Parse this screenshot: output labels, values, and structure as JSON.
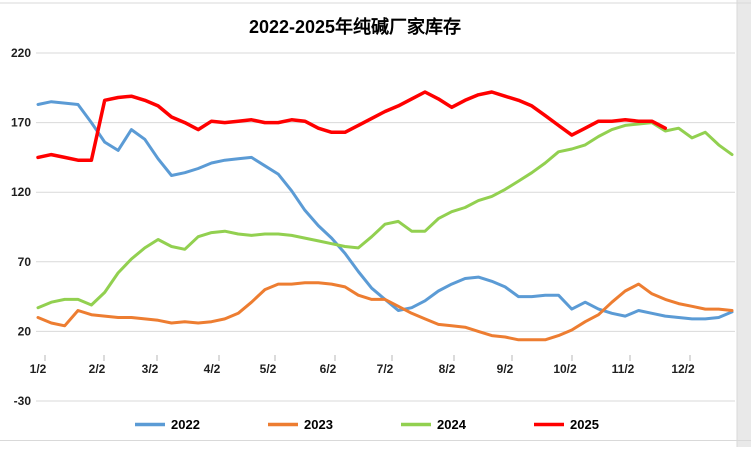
{
  "chart_data": {
    "type": "line",
    "title": "2022-2025年纯碱厂家库存",
    "ylim": [
      -30,
      220
    ],
    "y_ticks": [
      "220",
      "170",
      "120",
      "70",
      "20",
      "-30"
    ],
    "y_tick_values": [
      220,
      170,
      120,
      70,
      20,
      -30
    ],
    "x_tick_labels": [
      "1/2",
      "2/2",
      "3/2",
      "4/2",
      "5/2",
      "6/2",
      "7/2",
      "8/2",
      "9/2",
      "10/2",
      "11/2",
      "12/2"
    ],
    "x_unit": "weekly data points, monthly tick labels (month/day)",
    "grid": "horizontal",
    "legend_position": "bottom",
    "colors": {
      "grid": "#d9d9d9",
      "axis_text": "#1f1f1f",
      "frame": "#d9d9d9",
      "outside_background": "#e9e9e9"
    },
    "series": [
      {
        "name": "2022",
        "color": "#5B9BD5",
        "values": [
          183,
          185,
          184,
          183,
          170,
          156,
          150,
          165,
          158,
          144,
          132,
          134,
          137,
          141,
          143,
          144,
          145,
          139,
          133,
          121,
          107,
          96,
          87,
          76,
          63,
          51,
          43,
          35,
          37,
          42,
          49,
          54,
          58,
          59,
          56,
          52,
          45,
          45,
          46,
          46,
          36,
          41,
          36,
          33,
          31,
          35,
          33,
          31,
          30,
          29,
          29,
          30,
          34
        ]
      },
      {
        "name": "2023",
        "color": "#ED7D31",
        "values": [
          30,
          26,
          24,
          35,
          32,
          31,
          30,
          30,
          29,
          28,
          26,
          27,
          26,
          27,
          29,
          33,
          41,
          50,
          54,
          54,
          55,
          55,
          54,
          52,
          46,
          43,
          43,
          38,
          33,
          29,
          25,
          24,
          23,
          20,
          17,
          16,
          14,
          14,
          14,
          17,
          21,
          27,
          32,
          41,
          49,
          54,
          47,
          43,
          40,
          38,
          36,
          36,
          35
        ]
      },
      {
        "name": "2024",
        "color": "#92D050",
        "values": [
          37,
          41,
          43,
          43,
          39,
          48,
          62,
          72,
          80,
          86,
          81,
          79,
          88,
          91,
          92,
          90,
          89,
          90,
          90,
          89,
          87,
          85,
          83,
          81,
          80,
          88,
          97,
          99,
          92,
          92,
          101,
          106,
          109,
          114,
          117,
          122,
          128,
          134,
          141,
          149,
          151,
          154,
          160,
          165,
          168,
          169,
          170,
          164,
          166,
          159,
          163,
          154,
          147
        ]
      },
      {
        "name": "2025",
        "color": "#FF0000",
        "values": [
          145,
          147,
          145,
          143,
          143,
          186,
          188,
          189,
          186,
          182,
          174,
          170,
          165,
          171,
          170,
          171,
          172,
          170,
          170,
          172,
          171,
          166,
          163,
          163,
          168,
          173,
          178,
          182,
          187,
          192,
          187,
          181,
          186,
          190,
          192,
          189,
          186,
          182,
          175,
          168,
          161,
          166,
          171,
          171,
          172,
          171,
          171,
          166,
          null,
          null,
          null,
          null,
          null
        ]
      }
    ]
  }
}
